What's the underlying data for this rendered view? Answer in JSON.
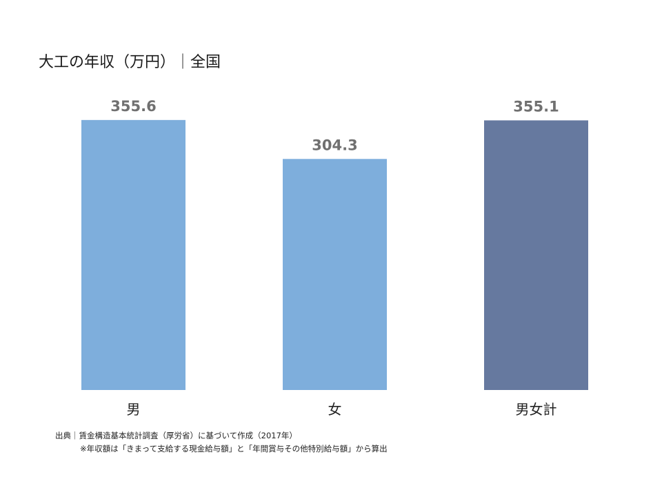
{
  "chart_data": {
    "type": "bar",
    "title": "大工の年収（万円）｜全国",
    "categories": [
      "男",
      "女",
      "男女計"
    ],
    "values": [
      355.6,
      304.3,
      355.1
    ],
    "value_labels": [
      "355.6",
      "304.3",
      "355.1"
    ],
    "bar_colors": [
      "#7eaedc",
      "#7eaedc",
      "#66799f"
    ],
    "label_color": "#707070",
    "ylim": [
      0,
      400
    ],
    "grid": false,
    "legend": "none",
    "xlabel": "",
    "ylabel": ""
  },
  "source": {
    "line1": "出典｜賃金構造基本統計調査（厚労省）に基づいて作成（2017年）",
    "line2": "※年収額は「きまって支給する現金給与額」と「年間賞与その他特別給与額」から算出"
  }
}
